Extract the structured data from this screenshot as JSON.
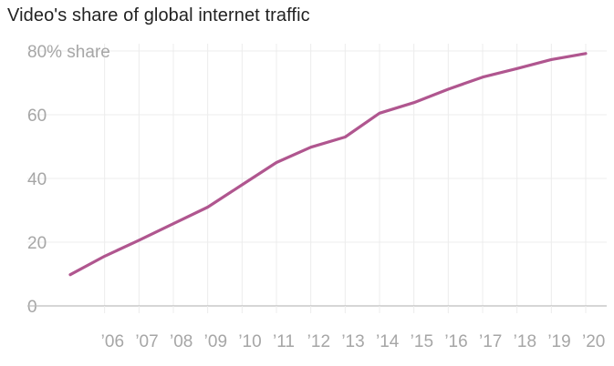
{
  "chart_data": {
    "type": "line",
    "title": "Video's share of global internet traffic",
    "xlabel": "",
    "ylabel": "",
    "ylim": [
      0,
      80
    ],
    "x": [
      2005,
      2006,
      2007,
      2008,
      2009,
      2010,
      2011,
      2012,
      2013,
      2014,
      2015,
      2016,
      2017,
      2018,
      2019,
      2020
    ],
    "y_ticks": [
      {
        "value": 0,
        "label": "0"
      },
      {
        "value": 20,
        "label": "20"
      },
      {
        "value": 40,
        "label": "40"
      },
      {
        "value": 60,
        "label": "60"
      },
      {
        "value": 80,
        "label": "80% share"
      }
    ],
    "x_ticks": [
      {
        "value": 2006,
        "label": "’06"
      },
      {
        "value": 2007,
        "label": "’07"
      },
      {
        "value": 2008,
        "label": "’08"
      },
      {
        "value": 2009,
        "label": "’09"
      },
      {
        "value": 2010,
        "label": "’10"
      },
      {
        "value": 2011,
        "label": "’11"
      },
      {
        "value": 2012,
        "label": "’12"
      },
      {
        "value": 2013,
        "label": "’13"
      },
      {
        "value": 2014,
        "label": "’14"
      },
      {
        "value": 2015,
        "label": "’15"
      },
      {
        "value": 2016,
        "label": "’16"
      },
      {
        "value": 2017,
        "label": "’17"
      },
      {
        "value": 2018,
        "label": "’18"
      },
      {
        "value": 2019,
        "label": "’19"
      },
      {
        "value": 2020,
        "label": "’20"
      }
    ],
    "series": [
      {
        "name": "Video share",
        "color": "#b0568f",
        "values": [
          9.8,
          15.6,
          20.6,
          25.8,
          31.0,
          38.0,
          45.0,
          49.8,
          53.0,
          60.5,
          63.8,
          68.0,
          71.8,
          74.5,
          77.3,
          79.2
        ]
      }
    ],
    "grid": true,
    "colors": {
      "grid": "#ececec",
      "axis": "#bdbdbd",
      "tick_text": "#a6a6a6",
      "title": "#222222"
    }
  }
}
